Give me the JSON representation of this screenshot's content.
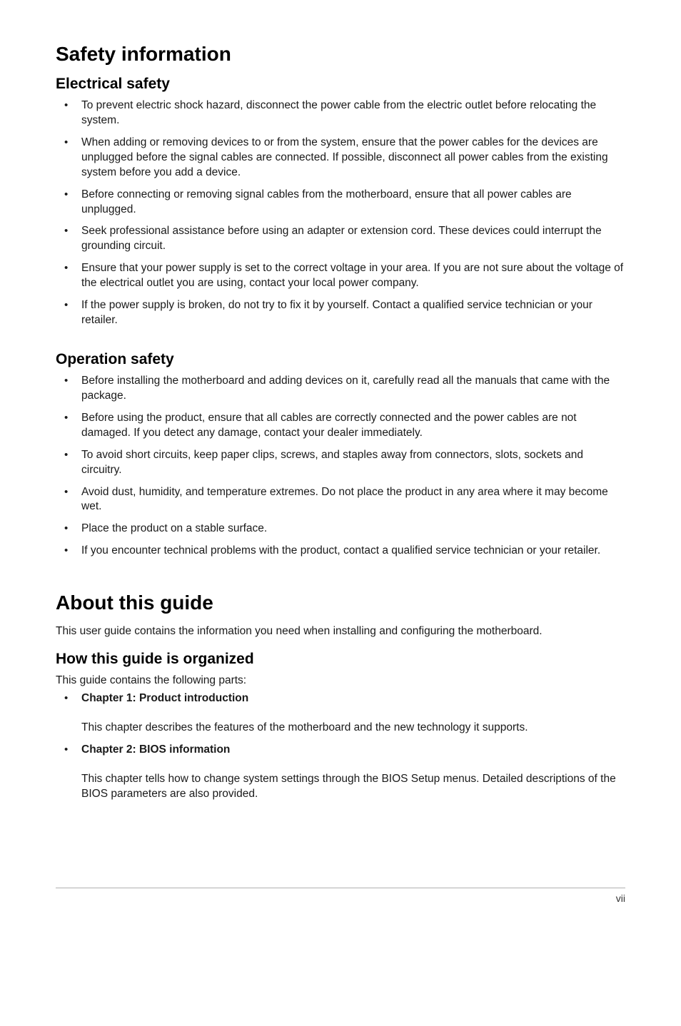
{
  "safety": {
    "title": "Safety information",
    "electrical": {
      "heading": "Electrical safety",
      "items": [
        "To prevent electric shock hazard, disconnect the power cable from the electric outlet before relocating the system.",
        "When adding or removing devices to or from the system, ensure that the power cables for the devices are unplugged before the signal cables are connected. If possible, disconnect all power cables from the existing system before you add a device.",
        "Before connecting or removing signal cables from the motherboard, ensure that all power cables are unplugged.",
        "Seek professional assistance before using an adapter or extension cord. These devices could interrupt the grounding circuit.",
        "Ensure that your power supply is set to the correct voltage in your area. If you are not sure about the voltage of the electrical outlet you are using, contact your local power company.",
        "If the power supply is broken, do not try to fix it by yourself. Contact a qualified service technician or your retailer."
      ]
    },
    "operation": {
      "heading": "Operation safety",
      "items": [
        "Before installing the motherboard and adding devices on it, carefully read all the manuals that came with the package.",
        "Before using the product, ensure that all cables are correctly connected and the power cables are not damaged. If you detect any damage, contact your dealer immediately.",
        "To avoid short circuits, keep paper clips, screws, and staples away from connectors, slots, sockets and circuitry.",
        "Avoid dust, humidity, and temperature extremes. Do not place the product in any area where it may become wet.",
        "Place the product on a stable surface.",
        "If you encounter technical problems with the product, contact a qualified service technician or your retailer."
      ]
    }
  },
  "about": {
    "title": "About this guide",
    "intro": "This user guide contains the information you need when installing and configuring the motherboard.",
    "organized": {
      "heading": "How this guide is organized",
      "sub": "This guide contains the following parts:",
      "chapters": [
        {
          "label": "Chapter 1: Product introduction",
          "desc": "This chapter describes the features of the motherboard and the new technology it supports."
        },
        {
          "label": "Chapter 2: BIOS information",
          "desc": "This chapter tells how to change system settings through the BIOS Setup menus. Detailed descriptions of the BIOS parameters are also provided."
        }
      ]
    }
  },
  "page_number": "vii"
}
